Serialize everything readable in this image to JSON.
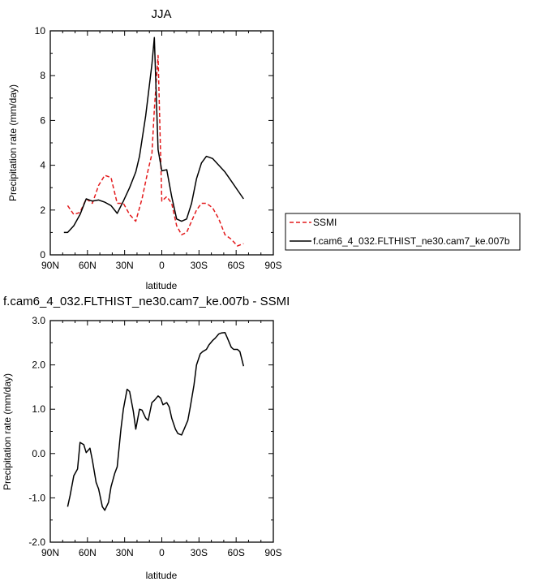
{
  "chart_data": [
    {
      "type": "line",
      "title": "JJA",
      "xlabel": "latitude",
      "ylabel": "Precipitation rate (mm/day)",
      "xlim": [
        90,
        -90
      ],
      "ylim": [
        0,
        10
      ],
      "xticks": [
        90,
        60,
        30,
        0,
        -30,
        -60,
        -90
      ],
      "xtick_labels": [
        "90N",
        "60N",
        "30N",
        "0",
        "30S",
        "60S",
        "90S"
      ],
      "yticks": [
        0,
        2,
        4,
        6,
        8,
        10
      ],
      "ytick_labels": [
        "0",
        "2",
        "4",
        "6",
        "8",
        "10"
      ],
      "grid": false,
      "legend": "outside-right",
      "series": [
        {
          "name": "SSMI",
          "color": "#e31a1c",
          "dash": "dashed",
          "x": [
            76,
            71,
            66,
            61,
            56,
            51,
            46,
            41,
            36,
            31,
            26,
            21,
            16,
            11,
            8,
            6,
            3,
            0,
            -4,
            -8,
            -12,
            -16,
            -20,
            -24,
            -28,
            -32,
            -36,
            -41,
            -46,
            -51,
            -56,
            -61,
            -66
          ],
          "y": [
            2.2,
            1.8,
            1.9,
            2.5,
            2.3,
            3.1,
            3.55,
            3.45,
            2.3,
            2.3,
            1.8,
            1.5,
            2.5,
            3.8,
            4.5,
            6.5,
            8.9,
            2.4,
            2.6,
            2.3,
            1.3,
            0.9,
            1.0,
            1.5,
            2.0,
            2.3,
            2.3,
            2.1,
            1.6,
            0.9,
            0.7,
            0.4,
            0.5
          ]
        },
        {
          "name": "f.cam6_4_032.FLTHIST_ne30.cam7_ke.007b",
          "color": "#000000",
          "dash": "solid",
          "x": [
            79,
            76,
            71,
            66,
            61,
            56,
            51,
            46,
            41,
            36,
            31,
            26,
            21,
            18,
            13,
            8,
            6,
            3,
            0,
            -4,
            -8,
            -12,
            -16,
            -20,
            -24,
            -28,
            -32,
            -36,
            -41,
            -46,
            -51,
            -56,
            -61,
            -66
          ],
          "y": [
            1.0,
            1.0,
            1.3,
            1.8,
            2.5,
            2.4,
            2.45,
            2.35,
            2.2,
            1.85,
            2.4,
            3.0,
            3.7,
            4.4,
            6.2,
            8.5,
            9.7,
            4.7,
            3.75,
            3.8,
            2.6,
            1.6,
            1.5,
            1.6,
            2.3,
            3.4,
            4.1,
            4.4,
            4.3,
            4.0,
            3.7,
            3.3,
            2.9,
            2.5
          ]
        }
      ]
    },
    {
      "type": "line",
      "title": "f.cam6_4_032.FLTHIST_ne30.cam7_ke.007b - SSMI",
      "xlabel": "latitude",
      "ylabel": "Precipitation rate (mm/day)",
      "xlim": [
        90,
        -90
      ],
      "ylim": [
        -2,
        3
      ],
      "xticks": [
        90,
        60,
        30,
        0,
        -30,
        -60,
        -90
      ],
      "xtick_labels": [
        "90N",
        "60N",
        "30N",
        "0",
        "30S",
        "60S",
        "90S"
      ],
      "yticks": [
        -2,
        -1,
        0,
        1,
        2,
        3
      ],
      "ytick_labels": [
        "-2.0",
        "-1.0",
        "0.0",
        "1.0",
        "2.0",
        "3.0"
      ],
      "grid": false,
      "series": [
        {
          "color": "#000000",
          "dash": "solid",
          "x": [
            76,
            74,
            71,
            68,
            66,
            63,
            61,
            58,
            56,
            53,
            51,
            48,
            46,
            43,
            41,
            38,
            36,
            33,
            31,
            28,
            26,
            23,
            21,
            18,
            16,
            13,
            11,
            8,
            6,
            3,
            1,
            -1,
            -4,
            -6,
            -8,
            -11,
            -13,
            -16,
            -18,
            -21,
            -23,
            -26,
            -28,
            -31,
            -33,
            -36,
            -38,
            -41,
            -43,
            -46,
            -48,
            -51,
            -53,
            -56,
            -58,
            -61,
            -63,
            -66
          ],
          "y": [
            -1.2,
            -0.95,
            -0.5,
            -0.35,
            0.25,
            0.2,
            0.02,
            0.12,
            -0.15,
            -0.65,
            -0.8,
            -1.2,
            -1.28,
            -1.1,
            -0.75,
            -0.45,
            -0.3,
            0.55,
            1.0,
            1.45,
            1.4,
            0.95,
            0.55,
            1.0,
            0.98,
            0.8,
            0.75,
            1.15,
            1.2,
            1.3,
            1.25,
            1.1,
            1.15,
            1.05,
            0.8,
            0.55,
            0.45,
            0.42,
            0.55,
            0.75,
            1.05,
            1.55,
            2.0,
            2.25,
            2.3,
            2.35,
            2.45,
            2.55,
            2.6,
            2.7,
            2.72,
            2.73,
            2.6,
            2.4,
            2.35,
            2.35,
            2.3,
            1.97
          ]
        }
      ]
    }
  ]
}
